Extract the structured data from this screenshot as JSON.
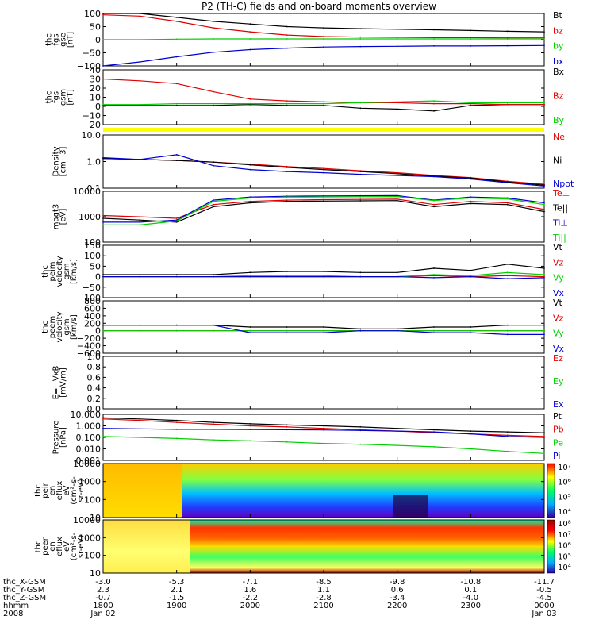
{
  "title": "P2 (TH-C) fields and on-board moments overview",
  "colors": {
    "black": "#000000",
    "red": "#e00000",
    "green": "#00d000",
    "blue": "#0000d0",
    "yellow": "#ffff00",
    "axis": "#000000"
  },
  "panels": [
    {
      "id": "fgs-gse",
      "ylabel": [
        "thc",
        "fgs",
        "gse",
        "[nT]"
      ],
      "scale": "linear",
      "ticks": [
        "100",
        "50",
        "0",
        "−50",
        "−100"
      ],
      "legend": [
        {
          "text": "Bt",
          "color": "black"
        },
        {
          "text": "bz",
          "color": "red"
        },
        {
          "text": "by",
          "color": "green"
        },
        {
          "text": "bx",
          "color": "blue"
        }
      ]
    },
    {
      "id": "fgs-gsm",
      "ylabel": [
        "thc",
        "fgs",
        "gsm",
        "[nT]"
      ],
      "scale": "linear",
      "ticks": [
        "40",
        "30",
        "20",
        "10",
        "0",
        "−10",
        "−20"
      ],
      "legend": [
        {
          "text": "Bx",
          "color": "black"
        },
        {
          "text": "Bz",
          "color": "red"
        },
        {
          "text": "By",
          "color": "green"
        }
      ]
    },
    {
      "id": "status-bar",
      "ylabel": [],
      "ticks": [],
      "legend": []
    },
    {
      "id": "density",
      "ylabel": [
        "Density",
        "[cm−3]"
      ],
      "scale": "log",
      "ticks": [
        "10.0",
        "1.0",
        "0.1"
      ],
      "legend": [
        {
          "text": "Ne",
          "color": "red"
        },
        {
          "text": "Ni",
          "color": "black"
        },
        {
          "text": "Npot",
          "color": "blue"
        }
      ]
    },
    {
      "id": "temperature",
      "ylabel": [
        "magt3",
        "[eV]"
      ],
      "scale": "log",
      "ticks": [
        "10000",
        "1000",
        "100"
      ],
      "legend": [
        {
          "text": "Te⊥",
          "color": "red"
        },
        {
          "text": "Te||",
          "color": "black"
        },
        {
          "text": "Ti⊥",
          "color": "blue"
        },
        {
          "text": "Ti||",
          "color": "green"
        }
      ]
    },
    {
      "id": "peim-velocity",
      "ylabel": [
        "thc",
        "peim",
        "velocity",
        "gsm",
        "[km/s]"
      ],
      "scale": "linear",
      "ticks": [
        "150",
        "100",
        "50",
        "0",
        "−50",
        "−100"
      ],
      "legend": [
        {
          "text": "Vt",
          "color": "black"
        },
        {
          "text": "Vz",
          "color": "red"
        },
        {
          "text": "Vy",
          "color": "green"
        },
        {
          "text": "Vx",
          "color": "blue"
        }
      ]
    },
    {
      "id": "peem-velocity",
      "ylabel": [
        "thc",
        "peem",
        "velocity",
        "gsm",
        "[km/s]"
      ],
      "scale": "linear",
      "ticks": [
        "800",
        "600",
        "400",
        "200",
        "0",
        "−200",
        "−400",
        "−600"
      ],
      "legend": [
        {
          "text": "Vt",
          "color": "black"
        },
        {
          "text": "Vz",
          "color": "red"
        },
        {
          "text": "Vy",
          "color": "green"
        },
        {
          "text": "Vx",
          "color": "blue"
        }
      ]
    },
    {
      "id": "e-field",
      "ylabel": [
        "E=−VxB",
        "[mV/m]"
      ],
      "scale": "linear",
      "ticks": [
        "1.0",
        "0.8",
        "0.6",
        "0.4",
        "0.2",
        "0.0"
      ],
      "legend": [
        {
          "text": "Ez",
          "color": "red"
        },
        {
          "text": "Ey",
          "color": "green"
        },
        {
          "text": "Ex",
          "color": "blue"
        }
      ]
    },
    {
      "id": "pressure",
      "ylabel": [
        "Pressure",
        "[nPa]"
      ],
      "scale": "log",
      "ticks": [
        "10.000",
        "1.000",
        "0.100",
        "0.010",
        "0.001"
      ],
      "legend": [
        {
          "text": "Pt",
          "color": "black"
        },
        {
          "text": "Pb",
          "color": "red"
        },
        {
          "text": "Pe",
          "color": "green"
        },
        {
          "text": "Pi",
          "color": "blue"
        }
      ]
    },
    {
      "id": "peir-spec",
      "ylabel": [
        "thc",
        "peir",
        "en",
        "eflux",
        "eV",
        "(cm²-s-",
        "sr-eV)"
      ],
      "scale": "log",
      "ticks": [
        "10000",
        "1000",
        "100",
        "10"
      ],
      "legend": [],
      "colorbar": [
        "10⁷",
        "10⁶",
        "10⁵",
        "10⁴"
      ]
    },
    {
      "id": "peer-spec",
      "ylabel": [
        "thc",
        "peer",
        "en",
        "eflux",
        "eV",
        "(cm²-s-",
        "sr-eV)"
      ],
      "scale": "log",
      "ticks": [
        "10000",
        "1000",
        "100",
        "10"
      ],
      "legend": [],
      "colorbar": [
        "10⁸",
        "10⁷",
        "10⁶",
        "10⁵",
        "10⁴"
      ]
    }
  ],
  "x_axis": {
    "row_labels": [
      "thc_X-GSM",
      "thc_Y-GSM",
      "thc_Z-GSM",
      "hhmm",
      "2008"
    ],
    "columns": [
      {
        "x": "-3.0",
        "y": "2.3",
        "z": "-0.7",
        "t": "1800",
        "d": "Jan 02"
      },
      {
        "x": "-5.3",
        "y": "2.1",
        "z": "-1.5",
        "t": "1900",
        "d": ""
      },
      {
        "x": "-7.1",
        "y": "1.6",
        "z": "-2.2",
        "t": "2000",
        "d": ""
      },
      {
        "x": "-8.5",
        "y": "1.1",
        "z": "-2.8",
        "t": "2100",
        "d": ""
      },
      {
        "x": "-9.8",
        "y": "0.6",
        "z": "-3.4",
        "t": "2200",
        "d": ""
      },
      {
        "x": "-10.8",
        "y": "0.1",
        "z": "-4.0",
        "t": "2300",
        "d": ""
      },
      {
        "x": "-11.7",
        "y": "-0.5",
        "z": "-4.5",
        "t": "0000",
        "d": "Jan 03"
      }
    ]
  },
  "chart_data": {
    "type": "line",
    "x_unit": "hhmm",
    "x": [
      1800,
      1830,
      1900,
      1930,
      2000,
      2030,
      2100,
      2130,
      2200,
      2230,
      2300,
      2330,
      2400
    ],
    "panels": [
      {
        "id": "fgs-gse",
        "ylim": [
          -100,
          100
        ],
        "series": [
          {
            "name": "Bt",
            "values": [
              105,
              100,
              85,
              70,
              60,
              50,
              45,
              42,
              40,
              38,
              35,
              32,
              30
            ]
          },
          {
            "name": "bz",
            "values": [
              95,
              90,
              70,
              45,
              30,
              18,
              12,
              10,
              9,
              8,
              8,
              7,
              7
            ]
          },
          {
            "name": "by",
            "values": [
              0,
              0,
              2,
              3,
              3,
              3,
              3,
              3,
              3,
              3,
              3,
              3,
              3
            ]
          },
          {
            "name": "bx",
            "values": [
              -100,
              -85,
              -65,
              -48,
              -38,
              -32,
              -28,
              -26,
              -25,
              -24,
              -24,
              -23,
              -22
            ]
          }
        ]
      },
      {
        "id": "fgs-gsm",
        "ylim": [
          -20,
          40
        ],
        "series": [
          {
            "name": "Bx",
            "values": [
              1,
              1,
              1,
              1,
              2,
              1,
              1,
              -2,
              -3,
              -5,
              1,
              2,
              2
            ]
          },
          {
            "name": "Bz",
            "values": [
              30,
              28,
              25,
              16,
              8,
              6,
              5,
              4,
              4,
              3,
              3,
              2,
              2
            ]
          },
          {
            "name": "By",
            "values": [
              2,
              2,
              3,
              3,
              3,
              3,
              3,
              4,
              5,
              6,
              4,
              4,
              4
            ]
          }
        ]
      },
      {
        "id": "density",
        "ylim": [
          0.1,
          10
        ],
        "series": [
          {
            "name": "Ne",
            "values": [
              1.3,
              1.2,
              1.1,
              0.95,
              0.8,
              0.65,
              0.55,
              0.45,
              0.38,
              0.3,
              0.25,
              0.18,
              0.14
            ]
          },
          {
            "name": "Ni",
            "values": [
              1.3,
              1.2,
              1.1,
              0.95,
              0.75,
              0.6,
              0.5,
              0.42,
              0.35,
              0.28,
              0.24,
              0.17,
              0.13
            ]
          },
          {
            "name": "Npot",
            "values": [
              1.4,
              1.2,
              1.8,
              0.7,
              0.5,
              0.42,
              0.38,
              0.33,
              0.3,
              0.27,
              0.22,
              0.16,
              0.12
            ]
          }
        ]
      },
      {
        "id": "temperature",
        "ylim": [
          50,
          10000
        ],
        "series": [
          {
            "name": "Te⊥",
            "values": [
              800,
              700,
              600,
              2500,
              3500,
              4000,
              4200,
              4300,
              4400,
              2500,
              3500,
              3000,
              1500
            ]
          },
          {
            "name": "Te||",
            "values": [
              600,
              500,
              400,
              2000,
              3000,
              3500,
              3600,
              3700,
              3800,
              2000,
              2800,
              2500,
              1200
            ]
          },
          {
            "name": "Ti⊥",
            "values": [
              400,
              400,
              500,
              4000,
              5500,
              6000,
              6200,
              6300,
              6400,
              4000,
              5500,
              5000,
              3000
            ]
          },
          {
            "name": "Ti||",
            "values": [
              300,
              300,
              450,
              3500,
              5000,
              5500,
              5600,
              5700,
              5800,
              3800,
              5000,
              4500,
              2500
            ]
          }
        ]
      },
      {
        "id": "peim-velocity",
        "ylim": [
          -100,
          150
        ],
        "series": [
          {
            "name": "Vt",
            "values": [
              10,
              10,
              10,
              10,
              20,
              25,
              25,
              20,
              20,
              40,
              30,
              60,
              40
            ]
          },
          {
            "name": "Vz",
            "values": [
              0,
              0,
              0,
              0,
              0,
              0,
              0,
              0,
              0,
              5,
              0,
              5,
              0
            ]
          },
          {
            "name": "Vy",
            "values": [
              0,
              0,
              0,
              0,
              5,
              5,
              5,
              0,
              0,
              10,
              5,
              20,
              10
            ]
          },
          {
            "name": "Vx",
            "values": [
              0,
              0,
              0,
              0,
              0,
              0,
              0,
              0,
              0,
              -5,
              0,
              -10,
              -5
            ]
          }
        ]
      },
      {
        "id": "peem-velocity",
        "ylim": [
          -600,
          800
        ],
        "series": [
          {
            "name": "Vt",
            "values": [
              150,
              150,
              150,
              150,
              100,
              100,
              100,
              50,
              50,
              100,
              100,
              150,
              150
            ]
          },
          {
            "name": "Vz",
            "values": [
              0,
              0,
              0,
              0,
              0,
              0,
              0,
              0,
              0,
              0,
              0,
              0,
              0
            ]
          },
          {
            "name": "Vy",
            "values": [
              0,
              0,
              0,
              0,
              0,
              0,
              0,
              0,
              0,
              0,
              0,
              0,
              0
            ]
          },
          {
            "name": "Vx",
            "values": [
              150,
              150,
              150,
              150,
              -50,
              -50,
              -50,
              0,
              0,
              -50,
              -50,
              -100,
              -100
            ]
          }
        ]
      },
      {
        "id": "e-field",
        "ylim": [
          0,
          1
        ],
        "series": []
      },
      {
        "id": "pressure",
        "ylim": [
          0.001,
          10
        ],
        "series": [
          {
            "name": "Pt",
            "values": [
              5,
              4,
              3,
              2,
              1.5,
              1.2,
              1.0,
              0.8,
              0.6,
              0.45,
              0.35,
              0.3,
              0.25
            ]
          },
          {
            "name": "Pb",
            "values": [
              4,
              3,
              2,
              1.4,
              1.0,
              0.8,
              0.6,
              0.45,
              0.35,
              0.25,
              0.2,
              0.15,
              0.12
            ]
          },
          {
            "name": "Pe",
            "values": [
              0.12,
              0.1,
              0.08,
              0.06,
              0.05,
              0.04,
              0.03,
              0.025,
              0.02,
              0.015,
              0.01,
              0.006,
              0.004
            ]
          },
          {
            "name": "Pi",
            "values": [
              0.6,
              0.55,
              0.5,
              0.5,
              0.48,
              0.46,
              0.44,
              0.4,
              0.35,
              0.3,
              0.2,
              0.12,
              0.1
            ]
          }
        ]
      }
    ]
  }
}
